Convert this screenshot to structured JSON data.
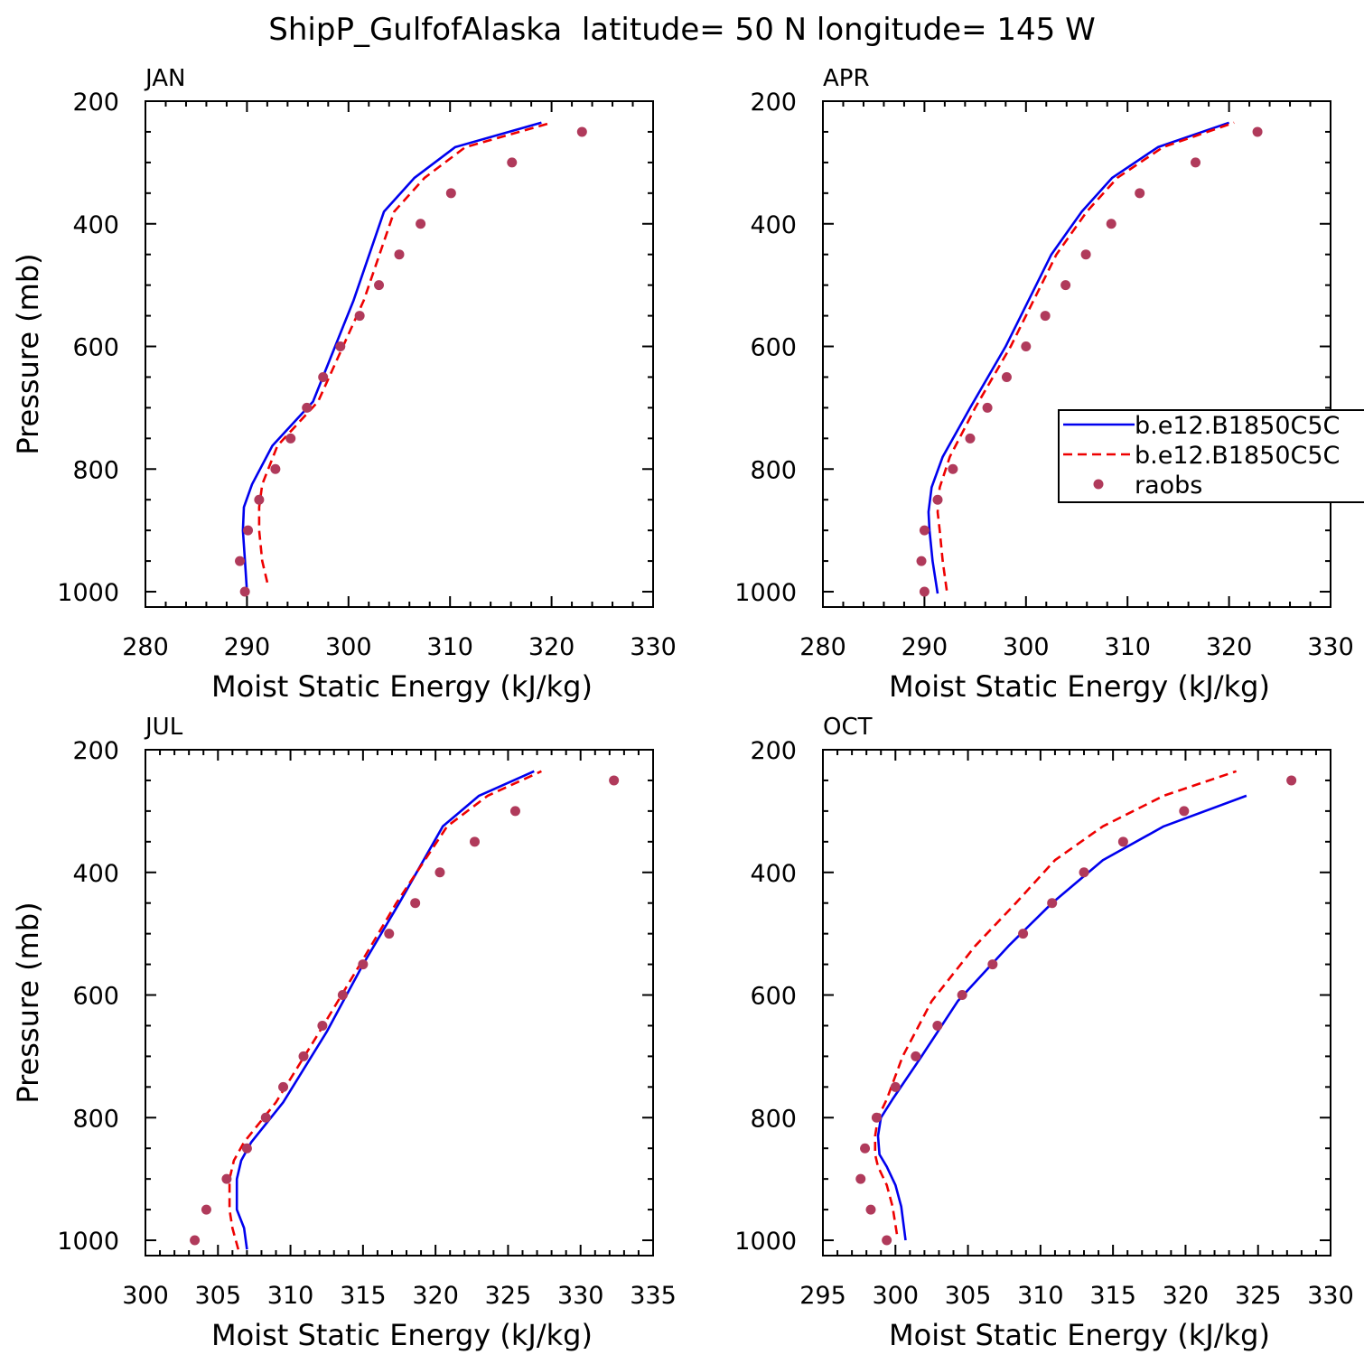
{
  "title": "ShipP_GulfofAlaska  latitude= 50 N longitude= 145 W",
  "colors": {
    "model1": "#0000ee",
    "model2": "#ee0000",
    "raobs": "#b03a5b"
  },
  "legend": {
    "entries": [
      "b.e12.B1850C5C",
      "b.e12.B1850C5C",
      "raobs"
    ],
    "panel": 1
  },
  "chart_data": [
    {
      "type": "line",
      "panel_label": "JAN",
      "xlabel": "Moist Static Energy (kJ/kg)",
      "ylabel": "Pressure (mb)",
      "xlim": [
        280,
        330
      ],
      "ylim": [
        200,
        1025
      ],
      "y_inverted": true,
      "xticks": [
        280,
        290,
        300,
        310,
        320,
        330
      ],
      "yticks": [
        200,
        400,
        600,
        800,
        1000
      ],
      "series": [
        {
          "style": "solid-blue",
          "x": [
            290.0,
            289.8,
            289.6,
            289.7,
            290.5,
            292.5,
            296.5,
            300.5,
            303.5,
            306.5,
            310.5,
            319.0
          ],
          "y": [
            1000,
            950,
            900,
            862,
            825,
            762,
            690,
            525,
            380,
            325,
            275,
            235
          ]
        },
        {
          "style": "dashed-red",
          "x": [
            292.0,
            291.5,
            291.2,
            291.2,
            291.5,
            293.0,
            297.0,
            301.5,
            304.5,
            307.5,
            311.5,
            320.0
          ],
          "y": [
            985,
            950,
            900,
            862,
            825,
            762,
            690,
            525,
            380,
            325,
            275,
            235
          ]
        },
        {
          "style": "dots",
          "name": "raobs",
          "x": [
            289.8,
            289.3,
            290.1,
            291.2,
            292.8,
            294.3,
            295.9,
            297.5,
            299.2,
            301.1,
            303.0,
            305.0,
            307.1,
            310.1,
            316.1,
            323.0
          ],
          "y": [
            1000,
            950,
            900,
            850,
            800,
            750,
            700,
            650,
            600,
            550,
            500,
            450,
            400,
            350,
            300,
            250
          ]
        }
      ]
    },
    {
      "type": "line",
      "panel_label": "APR",
      "xlabel": "Moist Static Energy (kJ/kg)",
      "ylabel": "",
      "xlim": [
        280,
        330
      ],
      "ylim": [
        200,
        1025
      ],
      "y_inverted": true,
      "xticks": [
        280,
        290,
        300,
        310,
        320,
        330
      ],
      "yticks": [
        200,
        400,
        600,
        800,
        1000
      ],
      "series": [
        {
          "style": "solid-blue",
          "x": [
            291.3,
            290.8,
            290.5,
            290.4,
            290.7,
            291.8,
            294.5,
            298.0,
            302.5,
            305.5,
            308.5,
            313.0,
            320.0
          ],
          "y": [
            1003,
            950,
            900,
            870,
            830,
            780,
            700,
            600,
            450,
            380,
            325,
            275,
            235
          ]
        },
        {
          "style": "dashed-red",
          "x": [
            292.2,
            291.8,
            291.5,
            291.3,
            291.5,
            292.5,
            295.0,
            298.5,
            303.0,
            306.0,
            309.0,
            313.5,
            320.5
          ],
          "y": [
            998,
            950,
            900,
            870,
            830,
            780,
            700,
            600,
            450,
            380,
            325,
            275,
            235
          ]
        },
        {
          "style": "dots",
          "name": "raobs",
          "x": [
            290.0,
            289.7,
            290.0,
            291.3,
            292.8,
            294.5,
            296.2,
            298.1,
            300.0,
            301.9,
            303.9,
            305.9,
            308.4,
            311.2,
            316.7,
            322.8
          ],
          "y": [
            1000,
            950,
            900,
            850,
            800,
            750,
            700,
            650,
            600,
            550,
            500,
            450,
            400,
            350,
            300,
            250
          ]
        }
      ]
    },
    {
      "type": "line",
      "panel_label": "JUL",
      "xlabel": "Moist Static Energy (kJ/kg)",
      "ylabel": "Pressure (mb)",
      "xlim": [
        300,
        335
      ],
      "ylim": [
        200,
        1025
      ],
      "y_inverted": true,
      "xticks": [
        300,
        305,
        310,
        315,
        320,
        325,
        330,
        335
      ],
      "yticks": [
        200,
        400,
        600,
        800,
        1000
      ],
      "series": [
        {
          "style": "solid-blue",
          "x": [
            307.0,
            306.8,
            306.3,
            306.3,
            306.6,
            307.3,
            309.5,
            312.5,
            315.0,
            317.5,
            320.5,
            323.0,
            326.8
          ],
          "y": [
            1015,
            980,
            950,
            900,
            870,
            840,
            775,
            660,
            550,
            450,
            325,
            275,
            235
          ]
        },
        {
          "style": "dashed-red",
          "x": [
            306.4,
            306.0,
            305.8,
            305.8,
            306.1,
            306.8,
            309.0,
            312.0,
            314.8,
            317.3,
            320.8,
            323.6,
            327.3
          ],
          "y": [
            1015,
            980,
            950,
            900,
            870,
            840,
            775,
            660,
            550,
            450,
            325,
            275,
            235
          ]
        },
        {
          "style": "dots",
          "name": "raobs",
          "x": [
            303.4,
            304.2,
            305.6,
            307.0,
            308.3,
            309.5,
            310.9,
            312.2,
            313.6,
            315.0,
            316.8,
            318.6,
            320.3,
            322.7,
            325.5,
            332.3
          ],
          "y": [
            1000,
            950,
            900,
            850,
            800,
            750,
            700,
            650,
            600,
            550,
            500,
            450,
            400,
            350,
            300,
            250
          ]
        }
      ]
    },
    {
      "type": "line",
      "panel_label": "OCT",
      "xlabel": "Moist Static Energy (kJ/kg)",
      "ylabel": "",
      "xlim": [
        295,
        330
      ],
      "ylim": [
        200,
        1025
      ],
      "y_inverted": true,
      "xticks": [
        295,
        300,
        305,
        310,
        315,
        320,
        325,
        330
      ],
      "yticks": [
        200,
        400,
        600,
        800,
        1000
      ],
      "series": [
        {
          "style": "solid-blue",
          "x": [
            300.7,
            300.4,
            300.0,
            299.4,
            298.9,
            298.8,
            299.0,
            299.8,
            301.8,
            304.3,
            307.8,
            310.8,
            314.3,
            318.5,
            324.2
          ],
          "y": [
            1000,
            945,
            910,
            880,
            860,
            830,
            800,
            770,
            700,
            610,
            520,
            450,
            380,
            325,
            275
          ]
        },
        {
          "style": "dashed-red",
          "x": [
            300.1,
            299.8,
            299.4,
            298.8,
            298.6,
            298.6,
            298.8,
            299.4,
            300.5,
            302.5,
            305.5,
            308.3,
            311.0,
            314.3,
            318.5,
            323.5
          ],
          "y": [
            990,
            945,
            910,
            880,
            860,
            830,
            800,
            770,
            700,
            610,
            520,
            450,
            380,
            325,
            275,
            235
          ]
        },
        {
          "style": "dots",
          "name": "raobs",
          "x": [
            299.4,
            298.3,
            297.6,
            297.9,
            298.7,
            300.0,
            301.4,
            302.9,
            304.6,
            306.7,
            308.8,
            310.8,
            313.0,
            315.7,
            319.9,
            327.3
          ],
          "y": [
            1000,
            950,
            900,
            850,
            800,
            750,
            700,
            650,
            600,
            550,
            500,
            450,
            400,
            350,
            300,
            250
          ]
        }
      ]
    }
  ]
}
